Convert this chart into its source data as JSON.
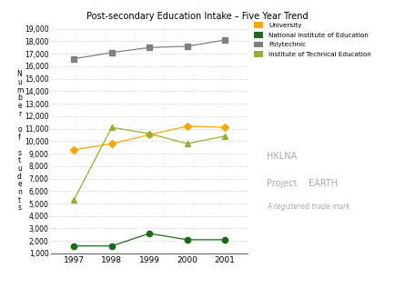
{
  "title": "Post-secondary Education Intake – Five Year Trend",
  "years": [
    1997,
    1998,
    1999,
    2000,
    2001
  ],
  "series_order": [
    "University",
    "National Institute of Education",
    "Polytechnic",
    "Institute of Technical Education"
  ],
  "series": {
    "University": {
      "values": [
        9300,
        9800,
        10500,
        11200,
        11100
      ],
      "color": "#FFA500",
      "marker": "D",
      "linestyle": "-"
    },
    "National Institute of Education": {
      "values": [
        1600,
        1600,
        2600,
        2100,
        2100
      ],
      "color": "#1a6b1a",
      "marker": "o",
      "linestyle": "-"
    },
    "Polytechnic": {
      "values": [
        16600,
        17100,
        17500,
        17600,
        18100
      ],
      "color": "#808080",
      "marker": "s",
      "linestyle": "-"
    },
    "Institute of Technical Education": {
      "values": [
        5300,
        11100,
        10600,
        9800,
        10400
      ],
      "color": "#9aad32",
      "marker": "^",
      "linestyle": "-"
    }
  },
  "ylim": [
    1000,
    19000
  ],
  "yticks": [
    1000,
    2000,
    3000,
    4000,
    5000,
    6000,
    7000,
    8000,
    9000,
    10000,
    11000,
    12000,
    13000,
    14000,
    15000,
    16000,
    17000,
    18000,
    19000
  ],
  "ytick_labels": [
    "1,000",
    "2,000",
    "3,000",
    "4,000",
    "5,000",
    "6,000",
    "7,000",
    "8,000",
    "9,000",
    "10,000",
    "11,000",
    "12,000",
    "13,000",
    "14,000",
    "15,000",
    "16,000",
    "17,000",
    "18,000",
    "19,000"
  ],
  "background_color": "#ffffff",
  "grid_color": "#bbbbbb",
  "ylabel_chars": [
    "N",
    "u",
    "m",
    "b",
    "e",
    "r",
    "",
    "o",
    "f",
    "",
    "s",
    "t",
    "u",
    "d",
    "e",
    "n",
    "t",
    "s"
  ],
  "watermark_line1": "HKLNA",
  "watermark_line2": "Project    EARTH",
  "watermark_line3": "A registered trade mark"
}
